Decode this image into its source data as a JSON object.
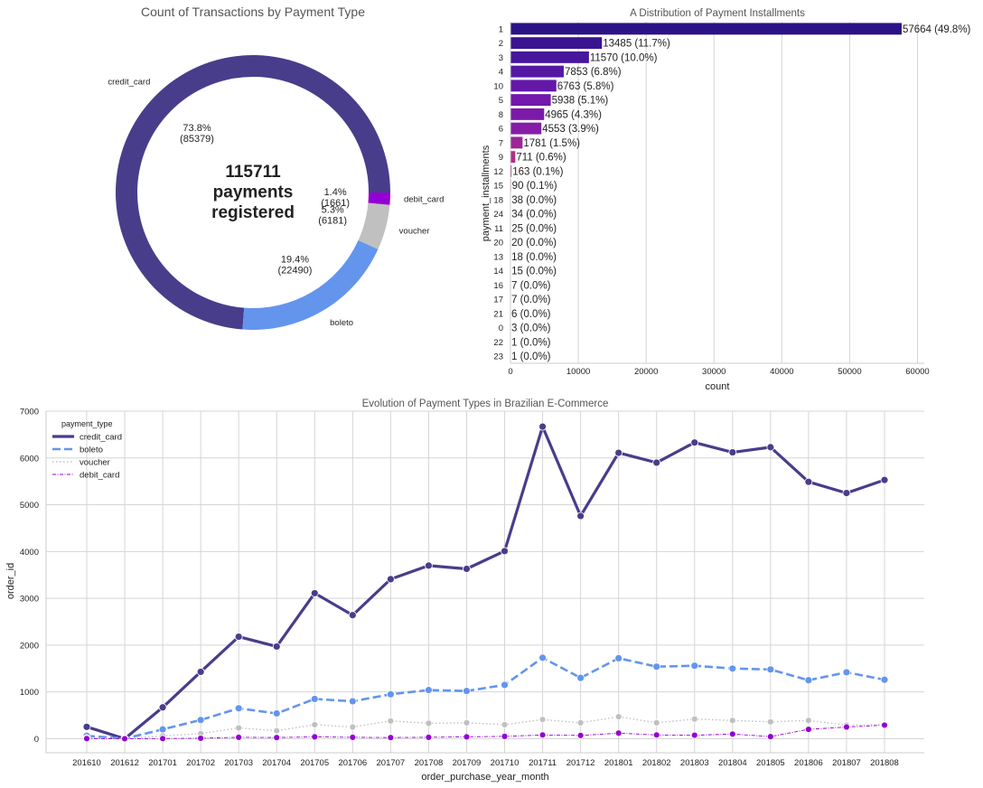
{
  "figure": {
    "donut": {
      "title": "Count of Transactions by Payment Type",
      "center_text": [
        "115711",
        "payments",
        "registered"
      ],
      "colors": [
        "#483D8B",
        "#6495ED",
        "#C0C0C0",
        "#9400D3"
      ],
      "slices": [
        {
          "label": "credit_card",
          "value": 85379,
          "pct": "73.8%",
          "count_label": "(85379)"
        },
        {
          "label": "boleto",
          "value": 22490,
          "pct": "19.4%",
          "count_label": "(22490)"
        },
        {
          "label": "voucher",
          "value": 6181,
          "pct": "5.3%",
          "count_label": "(6181)"
        },
        {
          "label": "debit_card",
          "value": 1661,
          "pct": "1.4%",
          "count_label": "(1661)"
        }
      ]
    },
    "installments": {
      "title": "A Distribution of Payment Installments",
      "ylabel": "payment_installments",
      "xlabel": "count",
      "xticks": [
        "0",
        "10000",
        "20000",
        "30000",
        "40000",
        "50000",
        "60000"
      ],
      "xlim": [
        0,
        61000
      ],
      "categories": [
        "1",
        "2",
        "3",
        "4",
        "10",
        "5",
        "8",
        "6",
        "7",
        "9",
        "12",
        "15",
        "18",
        "24",
        "11",
        "20",
        "13",
        "14",
        "16",
        "17",
        "21",
        "0",
        "22",
        "23"
      ],
      "values": [
        57664,
        13485,
        11570,
        7853,
        6763,
        5938,
        4965,
        4553,
        1781,
        711,
        163,
        90,
        38,
        34,
        25,
        20,
        18,
        15,
        7,
        7,
        6,
        3,
        1,
        1
      ],
      "labels": [
        "57664 (49.8%)",
        "13485 (11.7%)",
        "11570 (10.0%)",
        "7853 (6.8%)",
        "6763 (5.8%)",
        "5938 (5.1%)",
        "4965 (4.3%)",
        "4553 (3.9%)",
        "1781 (1.5%)",
        "711 (0.6%)",
        "163 (0.1%)",
        "90 (0.1%)",
        "38 (0.0%)",
        "34 (0.0%)",
        "25 (0.0%)",
        "20 (0.0%)",
        "18 (0.0%)",
        "15 (0.0%)",
        "7 (0.0%)",
        "7 (0.0%)",
        "6 (0.0%)",
        "3 (0.0%)",
        "1 (0.0%)",
        "1 (0.0%)"
      ],
      "bar_colors": [
        "#2b1386",
        "#3a1591",
        "#46179b",
        "#5418a2",
        "#6318a8",
        "#7218ab",
        "#7b1aa9",
        "#861da6",
        "#9c2596",
        "#b02f88",
        "#b8348a",
        "#bf3a87",
        "#c73f84",
        "#cc4481",
        "#d24a7e",
        "#d7507b",
        "#dc5677",
        "#e15d74",
        "#e56471",
        "#e96b6e",
        "#ed736c",
        "#f07b6a",
        "#f38469",
        "#f58c69"
      ]
    },
    "evolution": {
      "title": "Evolution of Payment Types in Brazilian E-Commerce",
      "xlabel": "order_purchase_year_month",
      "ylabel": "order_id",
      "legend_title": "payment_type",
      "yticks": [
        "0",
        "1000",
        "2000",
        "3000",
        "4000",
        "5000",
        "6000",
        "7000"
      ],
      "ylim": [
        -300,
        7000
      ],
      "categories": [
        "201610",
        "201612",
        "201701",
        "201702",
        "201703",
        "201704",
        "201705",
        "201706",
        "201707",
        "201708",
        "201709",
        "201710",
        "201711",
        "201712",
        "201801",
        "201802",
        "201803",
        "201804",
        "201805",
        "201806",
        "201807",
        "201808"
      ],
      "series": [
        {
          "name": "credit_card",
          "color": "#483D8B",
          "dash": "solid",
          "values": [
            254,
            0,
            670,
            1430,
            2180,
            1970,
            3110,
            2640,
            3410,
            3700,
            3630,
            4010,
            6670,
            4760,
            6110,
            5900,
            6330,
            6120,
            6230,
            5490,
            5250,
            5530
          ]
        },
        {
          "name": "boleto",
          "color": "#6495ED",
          "dash": "dashed",
          "values": [
            63,
            1,
            200,
            400,
            650,
            540,
            850,
            800,
            950,
            1040,
            1020,
            1150,
            1730,
            1300,
            1720,
            1540,
            1560,
            1500,
            1480,
            1250,
            1420,
            1260
          ]
        },
        {
          "name": "voucher",
          "color": "#C0C0C0",
          "dash": "dotted",
          "values": [
            20,
            0,
            60,
            110,
            230,
            170,
            300,
            250,
            380,
            330,
            340,
            300,
            410,
            340,
            470,
            340,
            420,
            390,
            360,
            390,
            290,
            300
          ]
        },
        {
          "name": "debit_card",
          "color": "#9400D3",
          "dash": "dashdot",
          "values": [
            2,
            0,
            3,
            10,
            30,
            25,
            40,
            30,
            25,
            30,
            40,
            50,
            80,
            70,
            120,
            80,
            75,
            100,
            45,
            200,
            250,
            290
          ]
        }
      ]
    }
  }
}
